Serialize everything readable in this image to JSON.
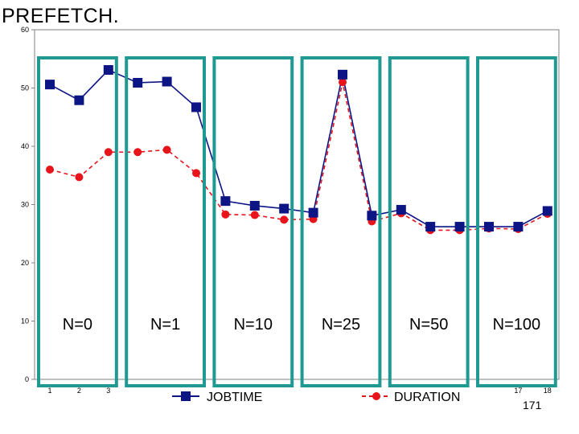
{
  "title": "PREFETCH.",
  "page_number": "171",
  "colors": {
    "jobtime": "#0d1585",
    "duration": "#e8141b",
    "group_box": "#1e9a92",
    "axis": "#808080"
  },
  "chart_data": {
    "type": "line",
    "x": [
      1,
      2,
      3,
      4,
      5,
      6,
      7,
      8,
      9,
      10,
      11,
      12,
      13,
      14,
      15,
      16,
      17,
      18
    ],
    "x_tick_labels": [
      "1",
      "2",
      "3",
      "17",
      "18"
    ],
    "ylim": [
      0,
      60
    ],
    "y_ticks": [
      0,
      10,
      20,
      30,
      40,
      50,
      60
    ],
    "grid": false,
    "legend_position": "bottom",
    "series": [
      {
        "name": "JOBTIME",
        "style": "solid line, square markers",
        "color": "#0d1585",
        "values": [
          50.6,
          47.9,
          53.1,
          50.9,
          51.1,
          46.7,
          30.6,
          29.8,
          29.3,
          28.6,
          52.3,
          28.1,
          29.1,
          26.2,
          26.2,
          26.2,
          26.2,
          28.9
        ]
      },
      {
        "name": "DURATION",
        "style": "dashed line, circle markers",
        "color": "#e8141b",
        "values": [
          36.0,
          34.7,
          39.0,
          39.0,
          39.4,
          35.4,
          28.3,
          28.2,
          27.4,
          27.5,
          51.0,
          27.1,
          28.5,
          25.6,
          25.6,
          25.9,
          25.8,
          28.4
        ]
      }
    ],
    "groups": [
      {
        "label": "N=0",
        "x_range": [
          1,
          3
        ]
      },
      {
        "label": "N=1",
        "x_range": [
          4,
          6
        ]
      },
      {
        "label": "N=10",
        "x_range": [
          7,
          9
        ]
      },
      {
        "label": "N=25",
        "x_range": [
          10,
          12
        ]
      },
      {
        "label": "N=50",
        "x_range": [
          13,
          15
        ]
      },
      {
        "label": "N=100",
        "x_range": [
          16,
          18
        ]
      }
    ]
  }
}
